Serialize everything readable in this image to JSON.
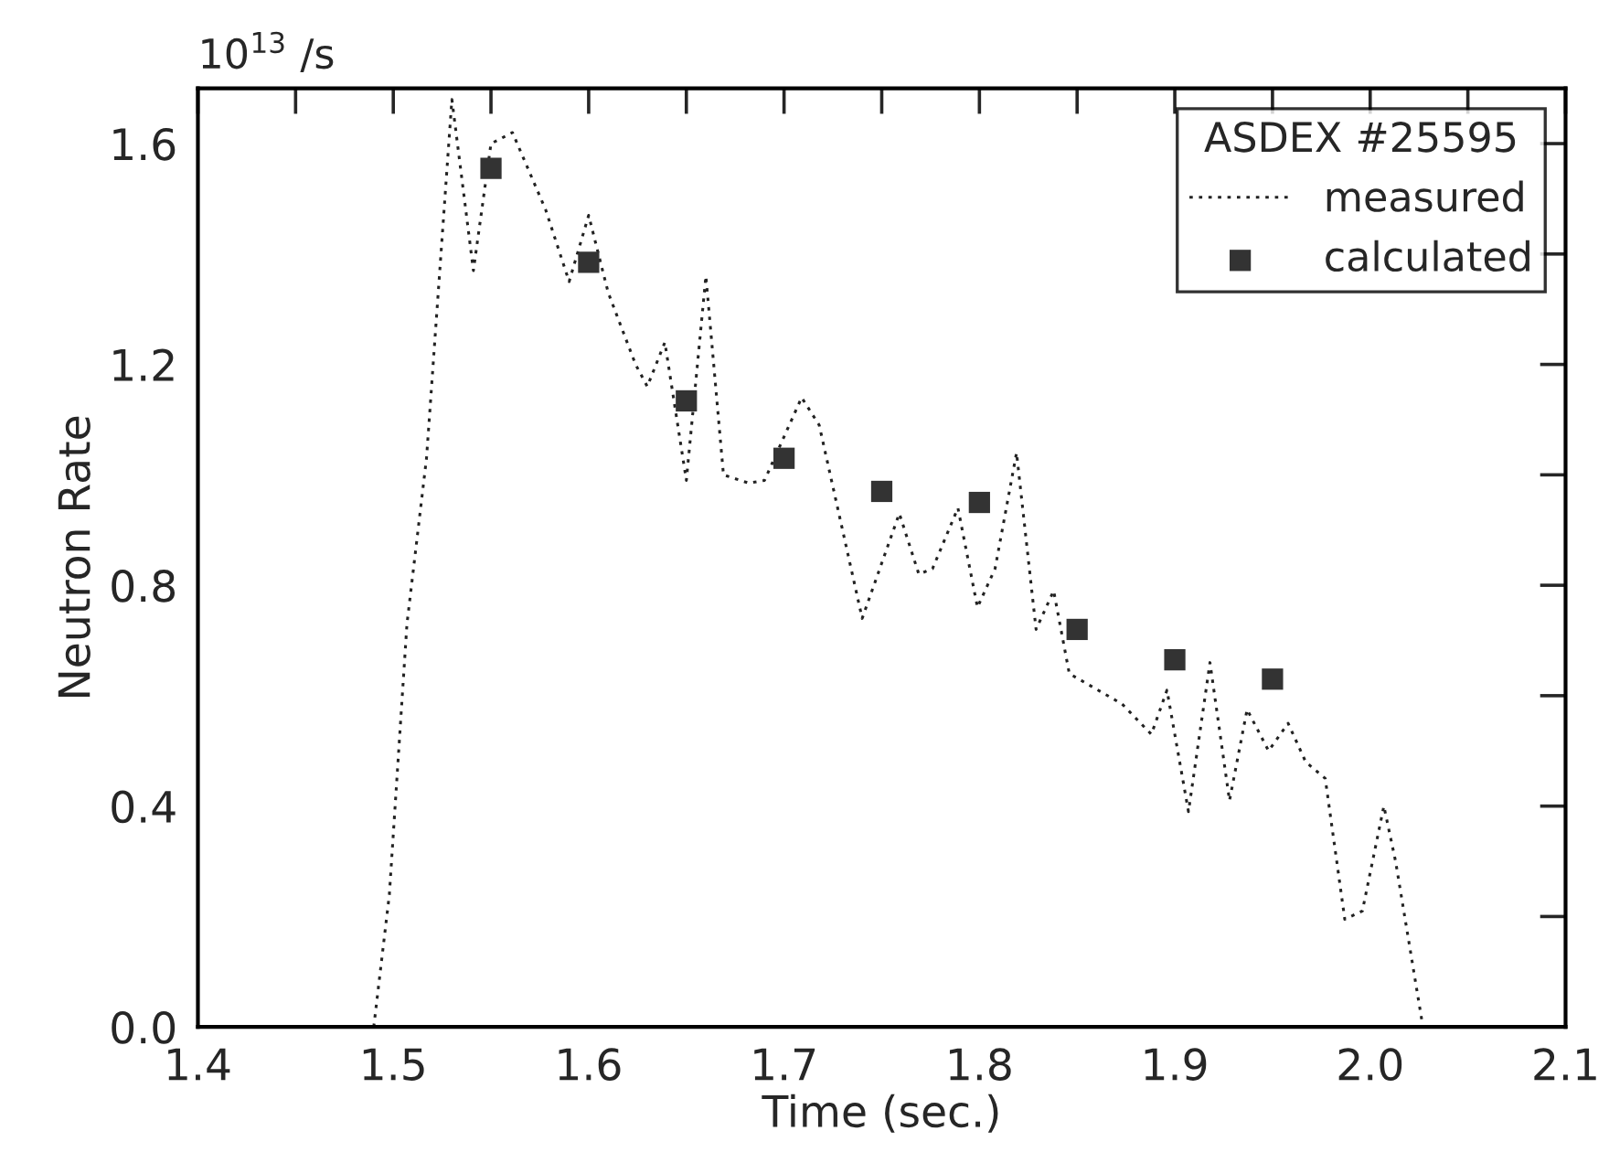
{
  "chart_data": {
    "type": "line",
    "xlabel": "Time (sec.)",
    "ylabel": "Neutron Rate",
    "legend_title": "ASDEX #25595",
    "annotations": [
      "10$^{13}$ /s"
    ],
    "series": [
      {
        "name": "measured",
        "line_style": "dotted",
        "marker": "none",
        "color": "#222222",
        "x": [
          1.49,
          1.498,
          1.507,
          1.517,
          1.53,
          1.541,
          1.55,
          1.561,
          1.578,
          1.59,
          1.6,
          1.61,
          1.624,
          1.63,
          1.639,
          1.65,
          1.66,
          1.669,
          1.682,
          1.69,
          1.709,
          1.718,
          1.74,
          1.759,
          1.769,
          1.776,
          1.789,
          1.799,
          1.808,
          1.819,
          1.829,
          1.838,
          1.846,
          1.873,
          1.888,
          1.896,
          1.907,
          1.918,
          1.928,
          1.937,
          1.948,
          1.958,
          1.967,
          1.977,
          1.987,
          1.996,
          2.007,
          2.013,
          2.027
        ],
        "values": [
          0.0,
          0.24,
          0.73,
          1.03,
          1.68,
          1.37,
          1.6,
          1.62,
          1.48,
          1.35,
          1.47,
          1.33,
          1.2,
          1.16,
          1.24,
          0.99,
          1.36,
          1.0,
          0.985,
          0.99,
          1.14,
          1.09,
          0.74,
          0.93,
          0.82,
          0.83,
          0.94,
          0.76,
          0.83,
          1.04,
          0.72,
          0.79,
          0.64,
          0.585,
          0.53,
          0.61,
          0.39,
          0.66,
          0.41,
          0.575,
          0.5,
          0.55,
          0.48,
          0.45,
          0.195,
          0.21,
          0.4,
          0.3,
          0.0
        ]
      },
      {
        "name": "calculated",
        "type": "scatter",
        "marker": "square",
        "color": "#333333",
        "x": [
          1.55,
          1.6,
          1.65,
          1.7,
          1.75,
          1.8,
          1.85,
          1.9,
          1.95
        ],
        "values": [
          1.555,
          1.385,
          1.134,
          1.03,
          0.97,
          0.95,
          0.72,
          0.665,
          0.63
        ]
      }
    ],
    "xlim": [
      1.4,
      2.1
    ],
    "ylim": [
      0,
      1.7
    ],
    "xticks": [
      1.4,
      {
        "value": 1.45,
        "label": null
      },
      1.5,
      {
        "value": 1.55,
        "label": null
      },
      1.6,
      {
        "value": 1.65,
        "label": null
      },
      1.7,
      {
        "value": 1.75,
        "label": null
      },
      1.8,
      {
        "value": 1.85,
        "label": null
      },
      1.9,
      {
        "value": 1.95,
        "label": null
      },
      {
        "value": 2.0,
        "label": "2.0"
      },
      {
        "value": 2.05,
        "label": null
      },
      2.1
    ],
    "yticks": [
      {
        "value": 0,
        "label": "0.0"
      },
      {
        "value": 0.2,
        "label": null
      },
      0.4,
      {
        "value": 0.6,
        "label": null
      },
      0.8,
      {
        "value": 1.0,
        "label": null
      },
      1.2,
      {
        "value": 1.4,
        "label": null
      },
      1.6
    ],
    "grid": false,
    "legend": "top right"
  }
}
